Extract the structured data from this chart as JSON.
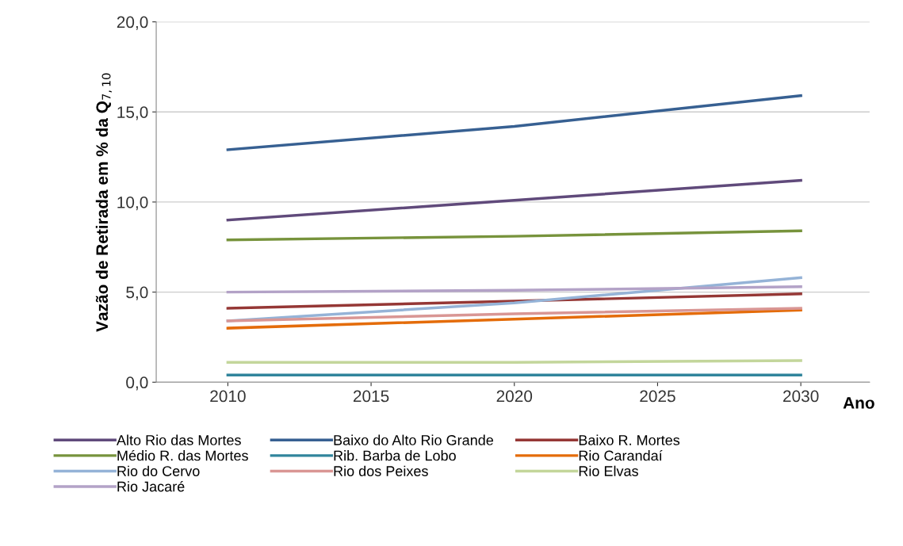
{
  "chart_data": {
    "type": "line",
    "xlabel": "Ano",
    "ylabel": "Vazão de Retirada em % da Q$_{7,10}$",
    "x": [
      2010,
      2020,
      2030
    ],
    "series": [
      {
        "name": "Alto Rio das Mortes",
        "color": "#604a7b",
        "values": [
          9.0,
          10.1,
          11.2
        ]
      },
      {
        "name": "Baixo do Alto Rio Grande",
        "color": "#376092",
        "values": [
          12.9,
          14.2,
          15.9
        ]
      },
      {
        "name": "Baixo R. Mortes",
        "color": "#953735",
        "values": [
          4.1,
          4.5,
          4.9
        ]
      },
      {
        "name": "Médio R. das Mortes",
        "color": "#77933c",
        "values": [
          7.9,
          8.1,
          8.4
        ]
      },
      {
        "name": "Rib. Barba de Lobo",
        "color": "#31859c",
        "values": [
          0.4,
          0.4,
          0.4
        ]
      },
      {
        "name": "Rio Carandaí",
        "color": "#e46c0a",
        "values": [
          3.0,
          3.5,
          4.0
        ]
      },
      {
        "name": "Rio do Cervo",
        "color": "#95b3d7",
        "values": [
          3.4,
          4.4,
          5.8
        ]
      },
      {
        "name": "Rio dos Peixes",
        "color": "#d99694",
        "values": [
          3.4,
          3.8,
          4.1
        ]
      },
      {
        "name": "Rio Elvas",
        "color": "#c3d69b",
        "values": [
          1.1,
          1.1,
          1.2
        ]
      },
      {
        "name": "Rio Jacaré",
        "color": "#b3a2c7",
        "values": [
          5.0,
          5.1,
          5.3
        ]
      }
    ],
    "xlim": [
      2007.5,
      2032.4
    ],
    "xticks": [
      2010,
      2015,
      2020,
      2025,
      2030
    ],
    "ylim": [
      0,
      20
    ],
    "yticks": [
      {
        "value": 0,
        "label": "0,0"
      },
      {
        "value": 5,
        "label": "5,0"
      },
      {
        "value": 10,
        "label": "10,0"
      },
      {
        "value": 15,
        "label": "15,0"
      },
      {
        "value": 20,
        "label": "20,0"
      }
    ],
    "grid": "y",
    "legend": "bottom",
    "marker": "none",
    "line_style": "solid"
  }
}
